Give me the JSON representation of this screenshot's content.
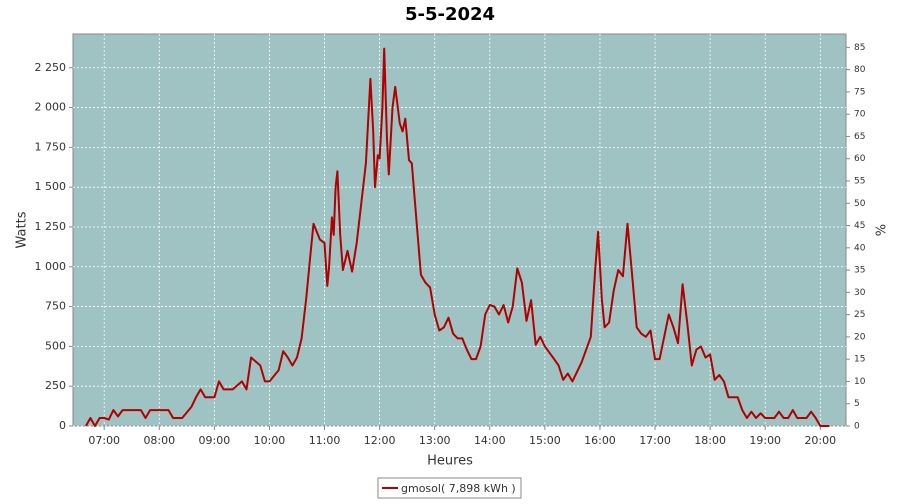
{
  "chart_data": {
    "type": "line",
    "title": "5-5-2024",
    "x_label": "Heures",
    "y_label": "Watts",
    "y2_label": "%",
    "xlim": [
      "06:26",
      "20:28"
    ],
    "xticks": [
      "07:00",
      "08:00",
      "09:00",
      "10:00",
      "11:00",
      "12:00",
      "13:00",
      "14:00",
      "15:00",
      "16:00",
      "17:00",
      "18:00",
      "19:00",
      "20:00"
    ],
    "ylim": [
      0,
      2462
    ],
    "yticks": [
      0,
      250,
      500,
      750,
      {
        "value": 1000,
        "label": "1 000"
      },
      {
        "value": 1250,
        "label": "1 250"
      },
      {
        "value": 1500,
        "label": "1 500"
      },
      {
        "value": 1750,
        "label": "1 750"
      },
      {
        "value": 2000,
        "label": "2 000"
      },
      {
        "value": 2250,
        "label": "2 250"
      }
    ],
    "y2lim": [
      0,
      88
    ],
    "y2ticks": [
      0,
      5,
      10,
      15,
      20,
      25,
      30,
      35,
      40,
      45,
      50,
      55,
      60,
      65,
      70,
      75,
      80,
      85
    ],
    "grid": true,
    "background": "#9fc3c3",
    "legend": "bottom",
    "x": [
      "06:40",
      "06:45",
      "06:50",
      "06:55",
      "07:00",
      "07:05",
      "07:10",
      "07:15",
      "07:20",
      "07:30",
      "07:40",
      "07:45",
      "07:50",
      "08:00",
      "08:10",
      "08:15",
      "08:25",
      "08:35",
      "08:40",
      "08:45",
      "08:50",
      "09:00",
      "09:05",
      "09:10",
      "09:20",
      "09:30",
      "09:35",
      "09:40",
      "09:50",
      "09:55",
      "10:00",
      "10:10",
      "10:15",
      "10:20",
      "10:25",
      "10:30",
      "10:35",
      "10:40",
      "10:45",
      "10:48",
      "10:55",
      "11:00",
      "11:03",
      "11:05",
      "11:08",
      "11:10",
      "11:12",
      "11:14",
      "11:17",
      "11:20",
      "11:25",
      "11:30",
      "11:35",
      "11:45",
      "11:50",
      "11:53",
      "11:55",
      "11:58",
      "12:00",
      "12:03",
      "12:05",
      "12:08",
      "12:10",
      "12:14",
      "12:17",
      "12:22",
      "12:25",
      "12:28",
      "12:32",
      "12:35",
      "12:45",
      "12:50",
      "12:55",
      "13:00",
      "13:05",
      "13:10",
      "13:15",
      "13:20",
      "13:25",
      "13:30",
      "13:35",
      "13:40",
      "13:45",
      "13:50",
      "13:55",
      "14:00",
      "14:05",
      "14:10",
      "14:15",
      "14:20",
      "14:25",
      "14:30",
      "14:35",
      "14:40",
      "14:45",
      "14:50",
      "14:55",
      "15:00",
      "15:10",
      "15:15",
      "15:20",
      "15:25",
      "15:30",
      "15:40",
      "15:50",
      "15:55",
      "15:58",
      "16:02",
      "16:05",
      "16:10",
      "16:15",
      "16:20",
      "16:25",
      "16:30",
      "16:35",
      "16:40",
      "16:45",
      "16:50",
      "16:55",
      "17:00",
      "17:05",
      "17:10",
      "17:15",
      "17:20",
      "17:25",
      "17:30",
      "17:35",
      "17:40",
      "17:45",
      "17:50",
      "17:55",
      "18:00",
      "18:05",
      "18:10",
      "18:15",
      "18:20",
      "18:30",
      "18:35",
      "18:40",
      "18:45",
      "18:50",
      "18:55",
      "19:00",
      "19:10",
      "19:15",
      "19:20",
      "19:25",
      "19:30",
      "19:35",
      "19:45",
      "19:50",
      "19:55",
      "20:00",
      "20:10"
    ],
    "series": [
      {
        "name": "gmosol( 7,898 kWh )",
        "color": "#b00000",
        "values": [
          0,
          50,
          0,
          50,
          50,
          40,
          100,
          60,
          100,
          100,
          100,
          50,
          100,
          100,
          100,
          50,
          50,
          120,
          180,
          230,
          180,
          180,
          280,
          230,
          230,
          280,
          230,
          430,
          380,
          280,
          280,
          350,
          470,
          430,
          380,
          430,
          550,
          800,
          1100,
          1270,
          1170,
          1150,
          880,
          1000,
          1310,
          1200,
          1500,
          1600,
          1200,
          980,
          1100,
          970,
          1150,
          1650,
          2180,
          1850,
          1500,
          1700,
          1680,
          2000,
          2370,
          1800,
          1580,
          2000,
          2130,
          1900,
          1850,
          1930,
          1670,
          1650,
          950,
          900,
          870,
          700,
          600,
          620,
          680,
          580,
          550,
          550,
          480,
          420,
          420,
          500,
          700,
          760,
          750,
          700,
          760,
          650,
          750,
          990,
          900,
          660,
          790,
          510,
          560,
          500,
          420,
          380,
          290,
          330,
          280,
          400,
          560,
          1000,
          1220,
          800,
          620,
          650,
          850,
          980,
          940,
          1270,
          950,
          620,
          580,
          560,
          600,
          420,
          420,
          560,
          700,
          620,
          520,
          890,
          650,
          380,
          480,
          500,
          430,
          450,
          290,
          320,
          280,
          180,
          180,
          100,
          50,
          90,
          50,
          80,
          50,
          50,
          90,
          50,
          50,
          100,
          50,
          50,
          90,
          50,
          0,
          0
        ]
      }
    ]
  }
}
